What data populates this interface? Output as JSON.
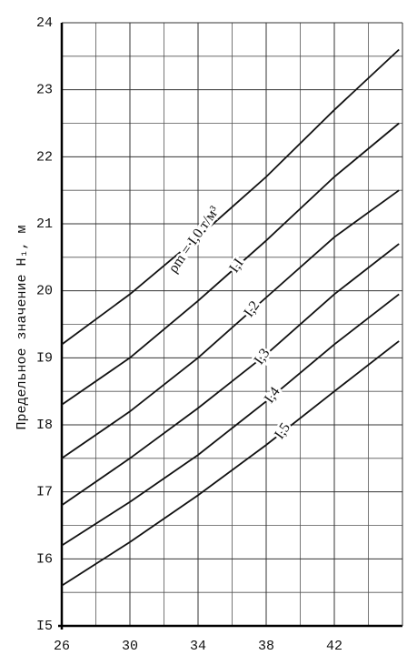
{
  "chart_data": {
    "type": "line",
    "y_label": "Предельное значение H₁, м",
    "x": [
      26,
      30,
      34,
      38,
      42,
      45.8
    ],
    "series": [
      {
        "name": "ρm = I,0 т/м³",
        "color": "#111111",
        "values": [
          19.2,
          19.95,
          20.8,
          21.7,
          22.7,
          23.6
        ]
      },
      {
        "name": "I,I",
        "color": "#111111",
        "values": [
          18.3,
          19.0,
          19.85,
          20.75,
          21.7,
          22.5
        ]
      },
      {
        "name": "I,2",
        "color": "#111111",
        "values": [
          17.5,
          18.2,
          19.0,
          19.9,
          20.8,
          21.5
        ]
      },
      {
        "name": "I,3",
        "color": "#111111",
        "values": [
          16.8,
          17.5,
          18.25,
          19.05,
          19.95,
          20.7
        ]
      },
      {
        "name": "I,4",
        "color": "#111111",
        "values": [
          16.2,
          16.85,
          17.55,
          18.35,
          19.2,
          19.95
        ]
      },
      {
        "name": "I,5",
        "color": "#111111",
        "values": [
          15.6,
          16.25,
          16.95,
          17.7,
          18.5,
          19.25
        ]
      }
    ],
    "xlim": [
      26,
      46
    ],
    "xticks": [
      26,
      30,
      34,
      38,
      42
    ],
    "minor_xticks": [
      28,
      32,
      36,
      40,
      44
    ],
    "ylim": [
      15,
      24
    ],
    "yticks": [
      {
        "value": 15,
        "label": "I5"
      },
      {
        "value": 16,
        "label": "I6"
      },
      {
        "value": 17,
        "label": "I7"
      },
      {
        "value": 18,
        "label": "I8"
      },
      {
        "value": 19,
        "label": "I9"
      },
      20,
      21,
      22,
      23,
      24
    ],
    "minor_yticks": [
      15.5,
      16.5,
      17.5,
      18.5,
      19.5,
      20.5,
      21.5,
      22.5,
      23.5
    ],
    "grid": true
  }
}
